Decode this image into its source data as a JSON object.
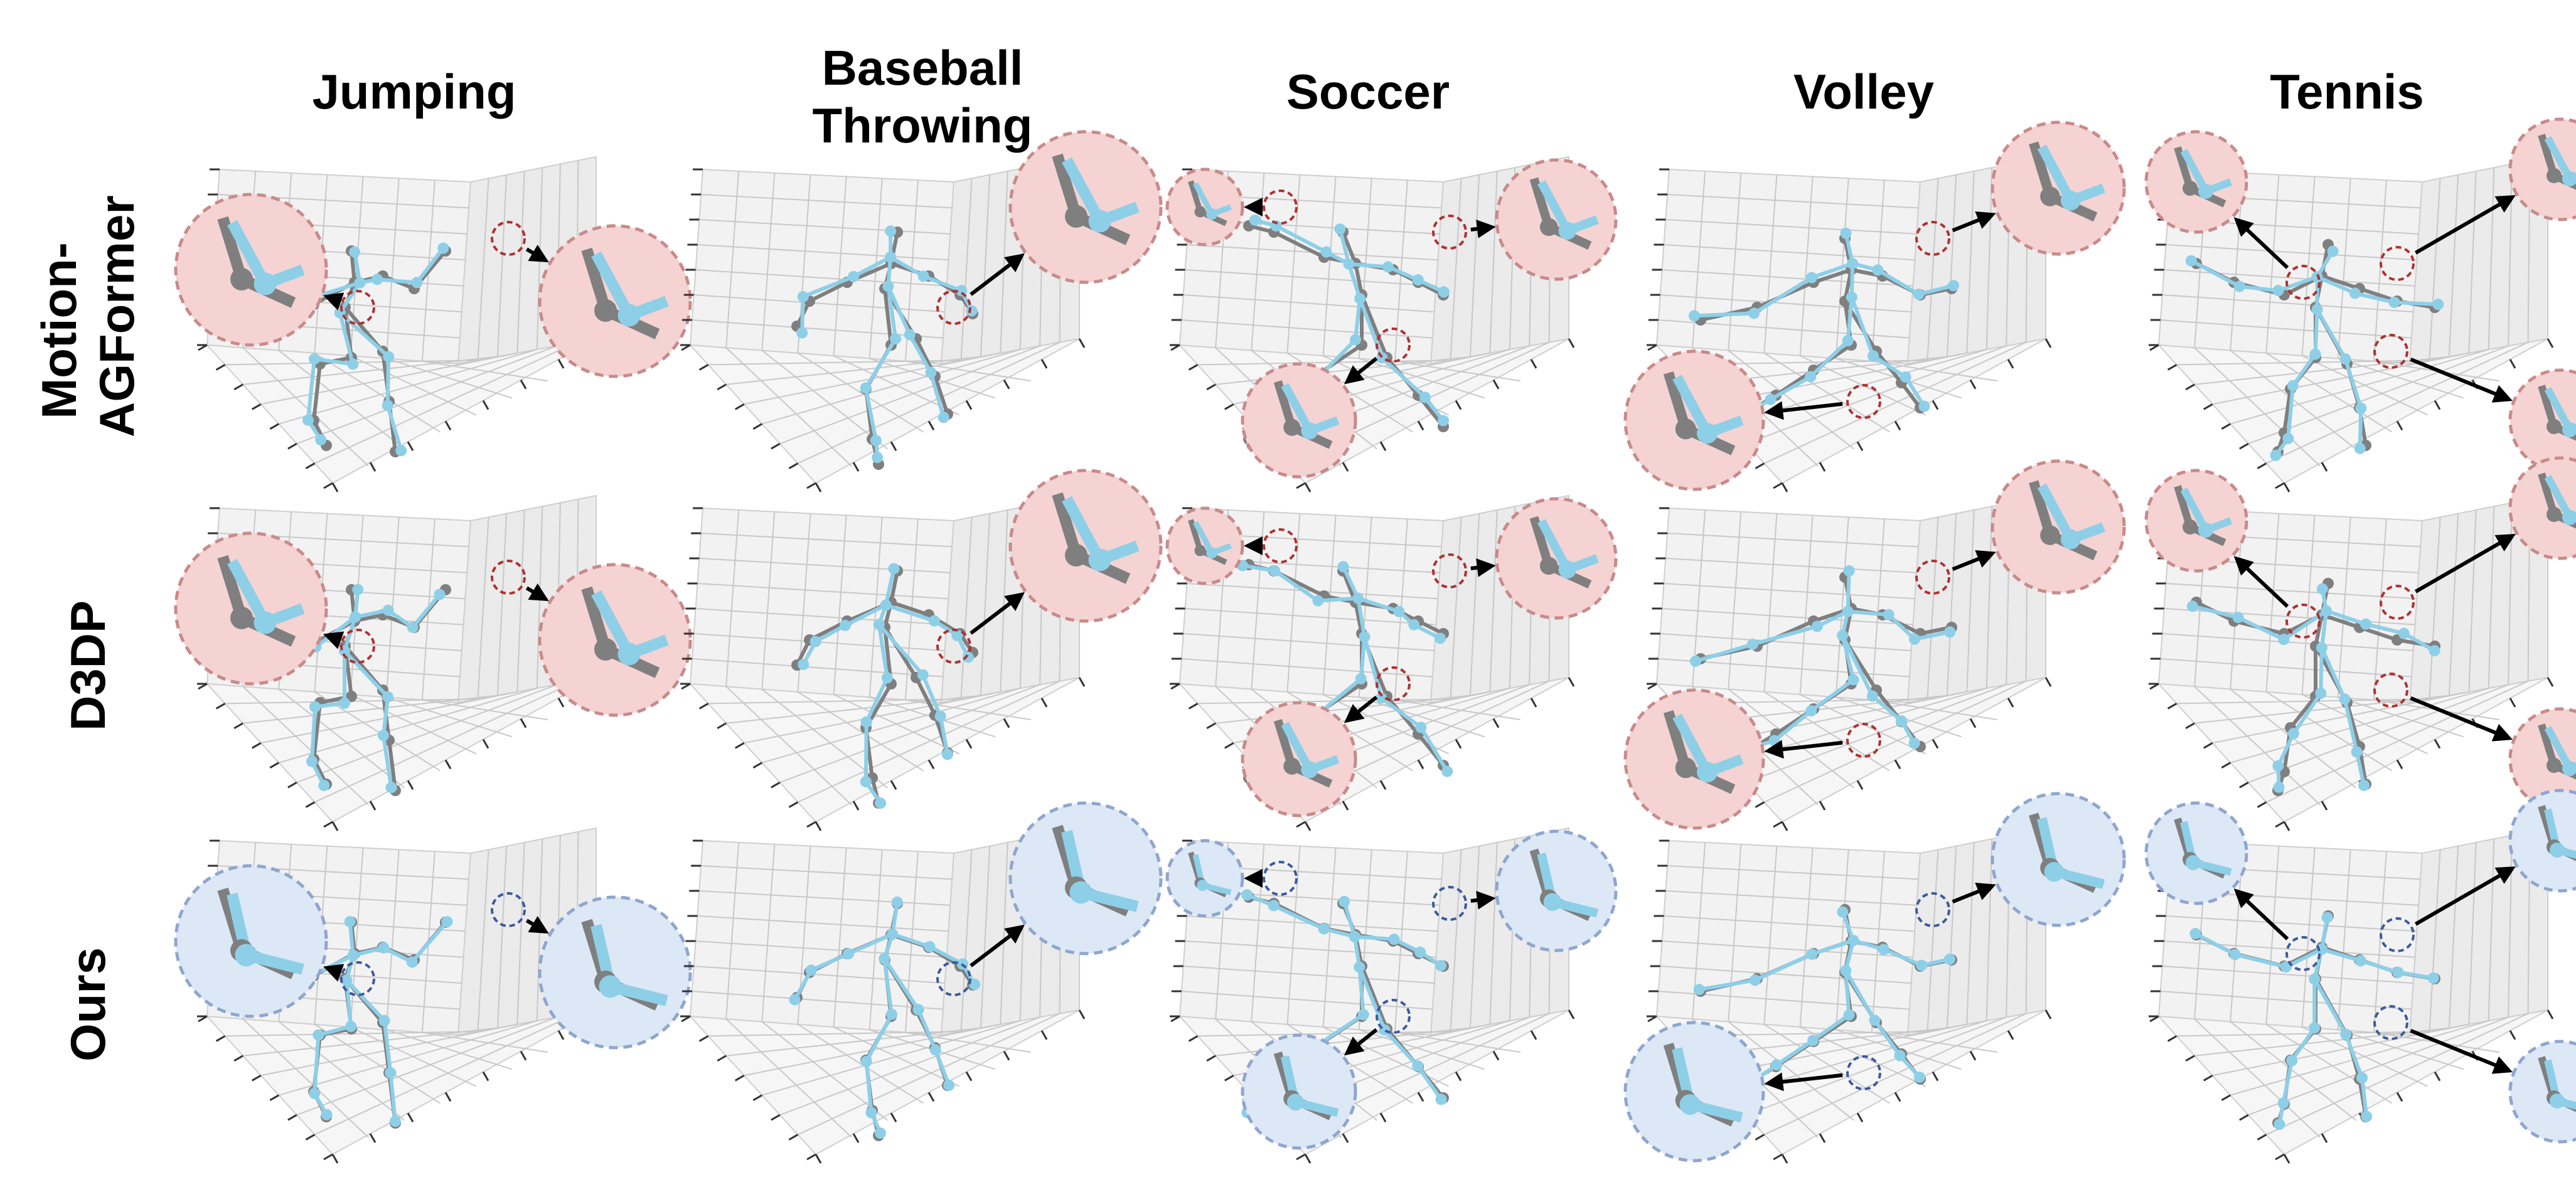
{
  "columns": [
    {
      "key": "jumping",
      "title_lines": [
        "Jumping"
      ]
    },
    {
      "key": "baseball-throwing",
      "title_lines": [
        "Baseball",
        "Throwing"
      ]
    },
    {
      "key": "soccer",
      "title_lines": [
        "Soccer"
      ]
    },
    {
      "key": "volley",
      "title_lines": [
        "Volley"
      ]
    },
    {
      "key": "tennis",
      "title_lines": [
        "Tennis"
      ]
    }
  ],
  "rows": [
    {
      "key": "motion-agformer",
      "label_lines": [
        "Motion-",
        "AGFormer"
      ],
      "highlight": "error"
    },
    {
      "key": "d3dp",
      "label_lines": [
        "D3DP"
      ],
      "highlight": "error"
    },
    {
      "key": "ours",
      "label_lines": [
        "Ours"
      ],
      "highlight": "good"
    }
  ],
  "colors": {
    "ground_truth_skeleton": "#7f7f7f",
    "prediction_skeleton": "#8ecfe8",
    "error_zoom_fill": "#f5d3d3",
    "error_zoom_border": "#c98a8a",
    "error_marker": "#b03030",
    "good_zoom_fill": "#dde8f6",
    "good_zoom_border": "#8ea6cf",
    "good_marker": "#3c5a9c",
    "pane_face": "#f2f2f2",
    "grid": "#c8c8c8",
    "arrow": "#000000"
  }
}
